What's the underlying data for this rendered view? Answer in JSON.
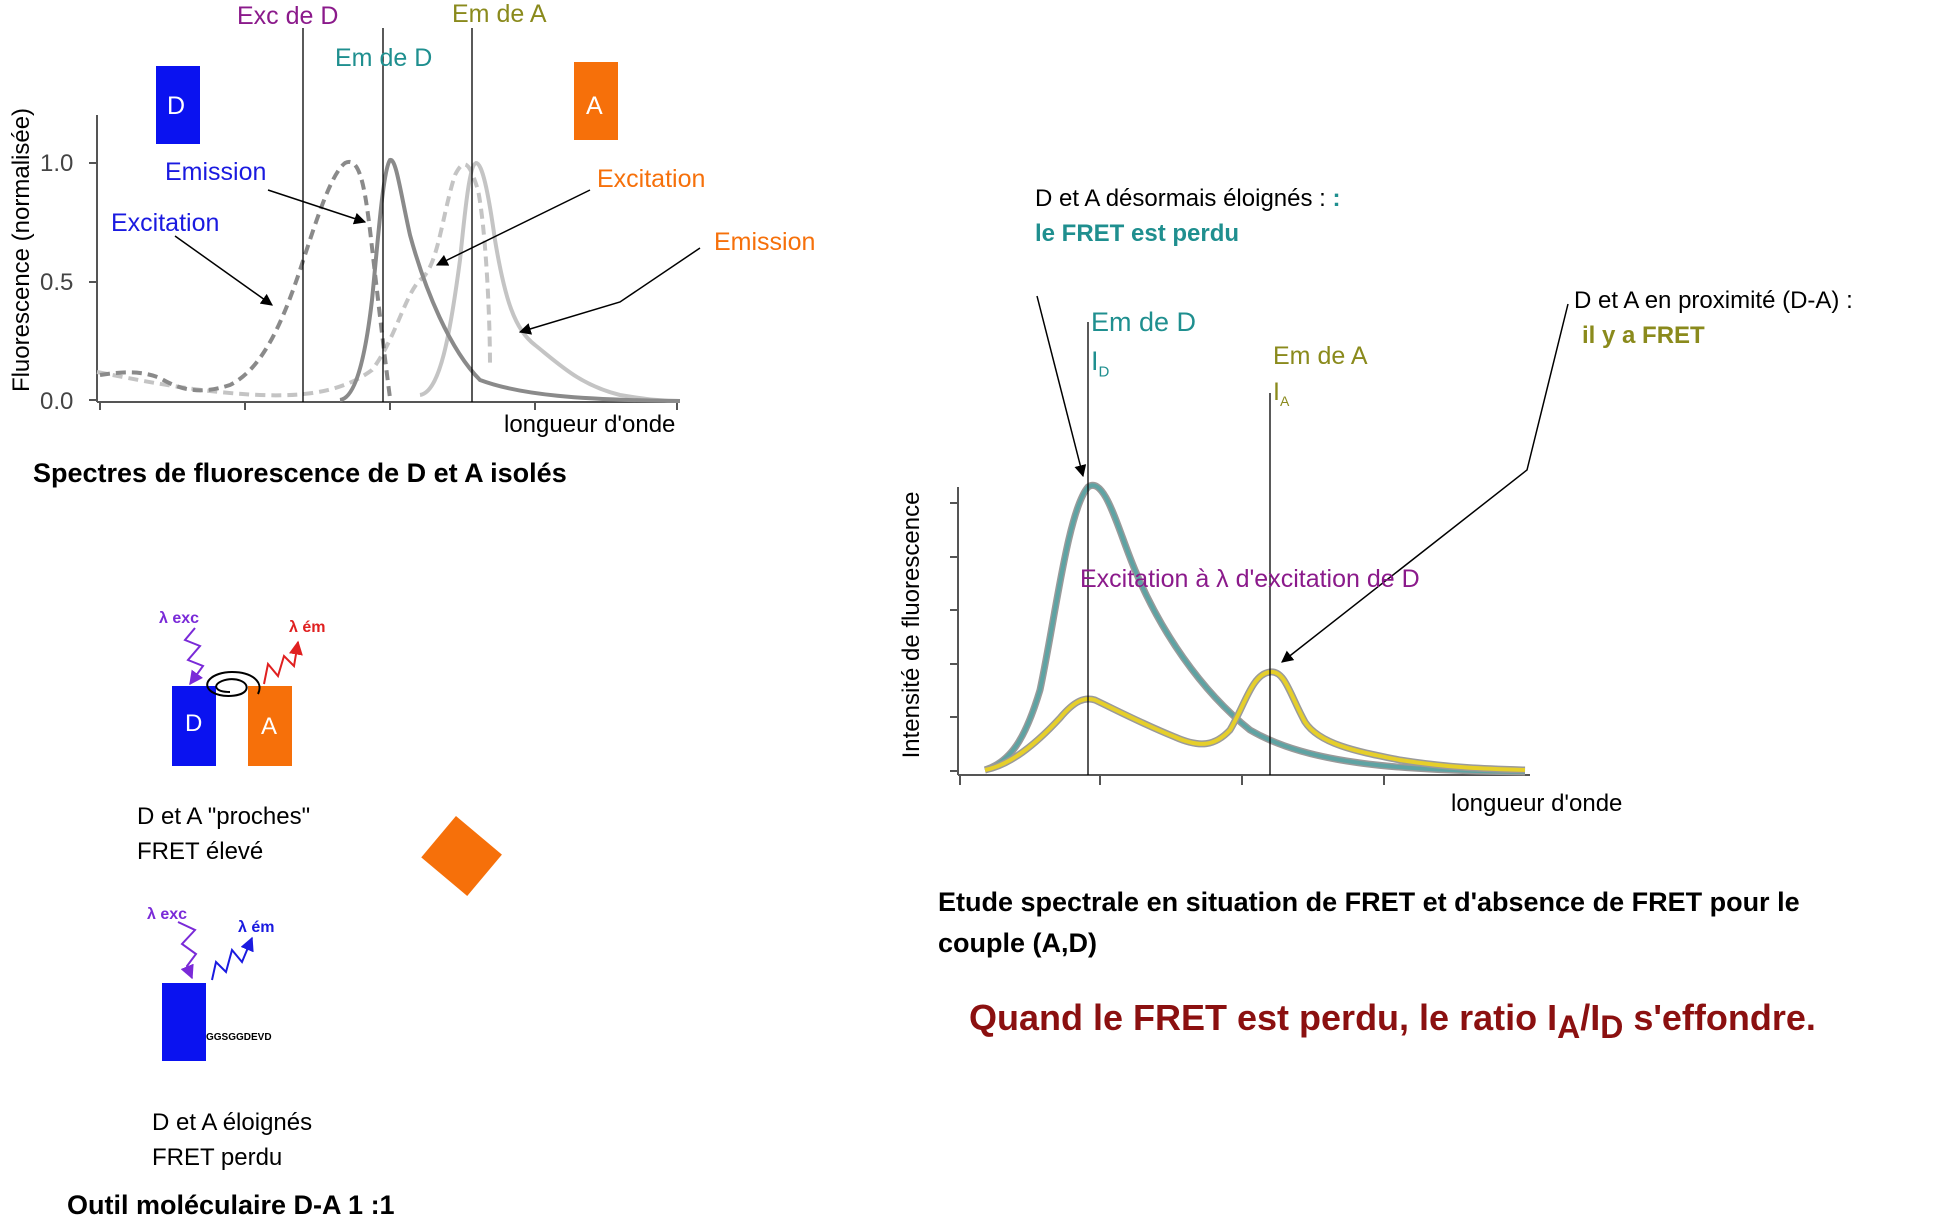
{
  "colors": {
    "donor": "#0a12f0",
    "acceptor": "#f6700a",
    "purple": "#8b1a8b",
    "teal": "#1f8f8f",
    "olive": "#8a8a1c",
    "blue_label": "#1a1ae0",
    "red_arrow": "#e02020",
    "violet_arrow": "#7a2ad8",
    "dark_red": "#8b1010",
    "curve_teal": "#5ea3a3",
    "curve_yellow": "#e6cf2a"
  },
  "left_chart": {
    "y_axis_label": "Fluorescence (normalisée)",
    "y_ticks": [
      "0.0",
      "0.5",
      "1.0"
    ],
    "x_axis_label": "longueur d'onde",
    "title": "Spectres de fluorescence de D et A isolés",
    "marker_exc_d": "Exc de D",
    "marker_em_d": "Em de D",
    "marker_em_a": "Em de A",
    "box_d": "D",
    "box_a": "A",
    "label_donor_emission": "Emission",
    "label_donor_excitation": "Excitation",
    "label_acceptor_excitation": "Excitation",
    "label_acceptor_emission": "Emission"
  },
  "molecular_tool": {
    "close_box_d": "D",
    "close_box_a": "A",
    "lambda_exc": "λ exc",
    "lambda_em": "λ ém",
    "close_caption_line1": "D et A \"proches\"",
    "close_caption_line2": "FRET élevé",
    "linker": "GGSGGDEVD",
    "far_caption_line1": "D et A éloignés",
    "far_caption_line2": "FRET perdu",
    "title": "Outil moléculaire D-A 1 :1"
  },
  "right_chart": {
    "note_lost_line1": "D et A désormais  éloignés : ",
    "note_lost_colon": ":",
    "note_lost_line2": "le FRET est perdu",
    "note_fret_line1": "D et A en proximité (D-A) :",
    "note_fret_line2": "il y a FRET",
    "marker_em_d": "Em de D",
    "marker_i_d": "I",
    "marker_i_d_sub": "D",
    "marker_em_a": "Em de A",
    "marker_i_a": "I",
    "marker_i_a_sub": "A",
    "excitation_note": "Excitation à  λ d'excitation de D",
    "y_axis_label": "Intensité de fluorescence",
    "x_axis_label": "longueur d'onde",
    "caption_line1": "Etude spectrale en situation de FRET et d'absence de FRET pour le",
    "caption_line2": "couple (A,D)"
  },
  "conclusion": {
    "part1": "Quand le FRET est perdu, le ratio I",
    "sub1": "A",
    "part2": "/I",
    "sub2": "D",
    "part3": " s'effondre."
  }
}
